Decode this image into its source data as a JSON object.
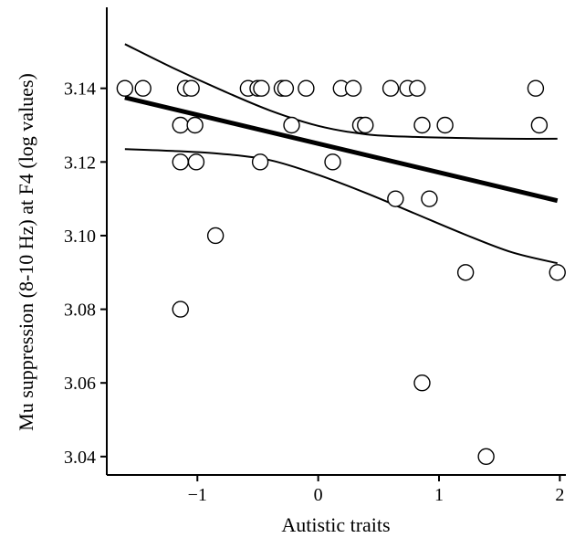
{
  "chart_data": {
    "type": "scatter",
    "xlabel": "Autistic traits",
    "ylabel": "Mu suppression (8-10 Hz) at F4 (log values)",
    "xlim": [
      -1.75,
      2.05
    ],
    "ylim": [
      3.035,
      3.162
    ],
    "x_ticks": [
      -1,
      0,
      1,
      2
    ],
    "x_tick_labels": [
      "−1",
      "0",
      "1",
      "2"
    ],
    "y_ticks": [
      3.04,
      3.06,
      3.08,
      3.1,
      3.12,
      3.14
    ],
    "y_tick_labels": [
      "3.04",
      "3.06",
      "3.08",
      "3.10",
      "3.12",
      "3.14"
    ],
    "grid": false,
    "legend": "none",
    "points": [
      {
        "x": -1.6,
        "y": 3.14
      },
      {
        "x": -1.45,
        "y": 3.14
      },
      {
        "x": -1.1,
        "y": 3.14
      },
      {
        "x": -1.05,
        "y": 3.14
      },
      {
        "x": -0.58,
        "y": 3.14
      },
      {
        "x": -0.5,
        "y": 3.14
      },
      {
        "x": -0.47,
        "y": 3.14
      },
      {
        "x": -0.3,
        "y": 3.14
      },
      {
        "x": -0.27,
        "y": 3.14
      },
      {
        "x": -0.1,
        "y": 3.14
      },
      {
        "x": 0.19,
        "y": 3.14
      },
      {
        "x": 0.29,
        "y": 3.14
      },
      {
        "x": 0.6,
        "y": 3.14
      },
      {
        "x": 0.74,
        "y": 3.14
      },
      {
        "x": 0.82,
        "y": 3.14
      },
      {
        "x": 1.8,
        "y": 3.14
      },
      {
        "x": -1.14,
        "y": 3.13
      },
      {
        "x": -1.02,
        "y": 3.13
      },
      {
        "x": -0.22,
        "y": 3.13
      },
      {
        "x": 0.35,
        "y": 3.13
      },
      {
        "x": 0.39,
        "y": 3.13
      },
      {
        "x": 0.86,
        "y": 3.13
      },
      {
        "x": 1.05,
        "y": 3.13
      },
      {
        "x": 1.83,
        "y": 3.13
      },
      {
        "x": -1.14,
        "y": 3.12
      },
      {
        "x": -1.01,
        "y": 3.12
      },
      {
        "x": -0.48,
        "y": 3.12
      },
      {
        "x": 0.12,
        "y": 3.12
      },
      {
        "x": 0.64,
        "y": 3.11
      },
      {
        "x": 0.92,
        "y": 3.11
      },
      {
        "x": -0.85,
        "y": 3.1
      },
      {
        "x": 1.22,
        "y": 3.09
      },
      {
        "x": 1.98,
        "y": 3.09
      },
      {
        "x": -1.14,
        "y": 3.08
      },
      {
        "x": 0.86,
        "y": 3.06
      },
      {
        "x": 1.39,
        "y": 3.04
      }
    ],
    "fit_line": {
      "x": [
        -1.6,
        1.98
      ],
      "y": [
        3.1375,
        3.1095
      ]
    },
    "confidence_band": {
      "upper": {
        "x": [
          -1.6,
          -1.2,
          -0.8,
          -0.4,
          0.0,
          0.4,
          0.8,
          1.2,
          1.6,
          1.98
        ],
        "y": [
          3.152,
          3.1455,
          3.1395,
          3.134,
          3.1298,
          3.1275,
          3.1268,
          3.1265,
          3.1263,
          3.1263
        ]
      },
      "lower": {
        "x": [
          -1.6,
          -1.2,
          -0.8,
          -0.4,
          0.0,
          0.4,
          0.8,
          1.2,
          1.6,
          1.98
        ],
        "y": [
          3.1235,
          3.123,
          3.1222,
          3.1205,
          3.1165,
          3.1115,
          3.106,
          3.1005,
          3.0955,
          3.0925
        ]
      }
    },
    "marker": {
      "shape": "circle",
      "fill": "#ffffff",
      "stroke": "#000000"
    },
    "line_color": "#000000"
  }
}
